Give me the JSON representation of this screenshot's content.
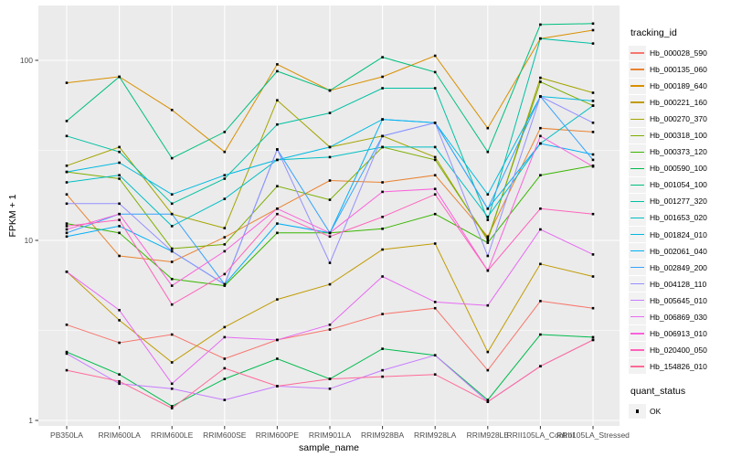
{
  "figure": {
    "axes": {
      "x_label": "sample_name",
      "y_label": "FPKM + 1",
      "y_tick_labels": [
        "1",
        "10",
        "100"
      ]
    },
    "legend": {
      "tracking_title": "tracking_id",
      "quant_title": "quant_status",
      "quant_ok_label": "OK"
    },
    "theme": {
      "background": "#FFFFFF",
      "panel_bg": "#EBEBEB",
      "grid_color": "#FFFFFF",
      "tick_text_color": "#4D4D4D",
      "tick_mark_color": "#333333",
      "axis_title_color": "#000000",
      "point_color": "#000000",
      "legend_key_bg": "#F2F2F2"
    }
  },
  "chart_data": {
    "type": "line",
    "title": "",
    "xlabel": "sample_name",
    "ylabel": "FPKM + 1",
    "y_scale": "log10",
    "ylim": [
      1,
      200
    ],
    "y_major_ticks": [
      1,
      10,
      100
    ],
    "y_minor_ticks": [
      3.1623,
      31.623
    ],
    "grid": true,
    "legend_position": "right",
    "point_marker": "black-square",
    "quant_status_all": "OK",
    "categories": [
      "PB350LA",
      "RRIM600LA",
      "RRIM600LE",
      "RRIM600SE",
      "RRIM600PE",
      "RRIM901LA",
      "RRIM928BA",
      "RRIM928LA",
      "RRIM928LE",
      "RRII105LA_Control",
      "RRII105LA_Stressed"
    ],
    "series": [
      {
        "name": "Hb_000028_590",
        "color": "#F8766D",
        "values": [
          3.4,
          2.7,
          3.0,
          2.2,
          2.8,
          3.2,
          3.9,
          4.2,
          1.9,
          4.6,
          4.2
        ]
      },
      {
        "name": "Hb_000135_060",
        "color": "#EA8331",
        "values": [
          18,
          8.2,
          7.6,
          10.4,
          15,
          21.5,
          21,
          23,
          10.5,
          42,
          40
        ]
      },
      {
        "name": "Hb_000189_640",
        "color": "#D89000",
        "values": [
          75,
          81,
          53,
          31,
          95,
          68,
          81,
          106,
          42,
          132,
          147
        ]
      },
      {
        "name": "Hb_000221_160",
        "color": "#C09B00",
        "values": [
          6.7,
          3.6,
          2.1,
          3.3,
          4.7,
          5.7,
          8.9,
          9.6,
          2.4,
          7.4,
          6.3
        ]
      },
      {
        "name": "Hb_000270_370",
        "color": "#A3A500",
        "values": [
          26,
          33,
          14,
          11.7,
          60,
          33,
          38,
          29,
          10,
          80,
          66
        ]
      },
      {
        "name": "Hb_000318_100",
        "color": "#7CAE00",
        "values": [
          24,
          22,
          9,
          9.5,
          20,
          16.8,
          33,
          28,
          10.2,
          76,
          56
        ]
      },
      {
        "name": "Hb_000373_120",
        "color": "#39B600",
        "values": [
          12.4,
          11,
          6.1,
          5.6,
          11,
          11,
          11.6,
          14,
          9.7,
          23,
          26
        ]
      },
      {
        "name": "Hb_000590_100",
        "color": "#00BB4E",
        "values": [
          2.4,
          1.8,
          1.2,
          1.7,
          2.2,
          1.7,
          2.5,
          2.3,
          1.3,
          3.0,
          2.9
        ]
      },
      {
        "name": "Hb_001054_100",
        "color": "#00BF7D",
        "values": [
          46,
          81,
          28.6,
          40,
          87,
          68,
          104,
          86,
          31,
          158,
          160
        ]
      },
      {
        "name": "Hb_001277_320",
        "color": "#00C1A3",
        "values": [
          38,
          31,
          16,
          22,
          44,
          51,
          70,
          70,
          13,
          132,
          124
        ]
      },
      {
        "name": "Hb_001653_020",
        "color": "#00BFC4",
        "values": [
          21,
          23,
          12,
          17,
          28,
          29,
          33,
          33,
          13.5,
          34.5,
          56
        ]
      },
      {
        "name": "Hb_001824_010",
        "color": "#00BAE0",
        "values": [
          24,
          27,
          18,
          23,
          28,
          33,
          47,
          45,
          18,
          63,
          59.5
        ]
      },
      {
        "name": "Hb_002061_040",
        "color": "#00B0F6",
        "values": [
          10.5,
          12,
          8.7,
          5.7,
          12.4,
          11,
          47,
          45,
          15,
          34.5,
          30
        ]
      },
      {
        "name": "Hb_002849_200",
        "color": "#35A2FF",
        "values": [
          11,
          14,
          14,
          5.7,
          32,
          11,
          38,
          45,
          15,
          63,
          28
        ]
      },
      {
        "name": "Hb_004128_110",
        "color": "#9590FF",
        "values": [
          16,
          16,
          8.7,
          5.7,
          32,
          7.5,
          38,
          45,
          8.2,
          63,
          45
        ]
      },
      {
        "name": "Hb_005645_010",
        "color": "#C77CFF",
        "values": [
          2.35,
          1.6,
          1.5,
          1.3,
          1.55,
          1.5,
          1.9,
          2.3,
          1.27,
          2.0,
          2.8
        ]
      },
      {
        "name": "Hb_006869_030",
        "color": "#E76BF3",
        "values": [
          6.7,
          4.1,
          1.6,
          2.9,
          2.8,
          3.4,
          6.3,
          4.55,
          4.35,
          11.5,
          8.35
        ]
      },
      {
        "name": "Hb_006913_010",
        "color": "#FA62DB",
        "values": [
          11.5,
          14,
          5.6,
          8.7,
          15,
          11,
          18.6,
          19.3,
          6.8,
          38,
          25.7
        ]
      },
      {
        "name": "Hb_020400_050",
        "color": "#FF62BC",
        "values": [
          12,
          13,
          4.4,
          6.5,
          14,
          10.5,
          13.5,
          18,
          6.8,
          15,
          14
        ]
      },
      {
        "name": "Hb_154826_010",
        "color": "#FF6A98",
        "values": [
          1.9,
          1.65,
          1.17,
          1.95,
          1.55,
          1.7,
          1.75,
          1.8,
          1.27,
          2.0,
          2.8
        ]
      }
    ]
  }
}
